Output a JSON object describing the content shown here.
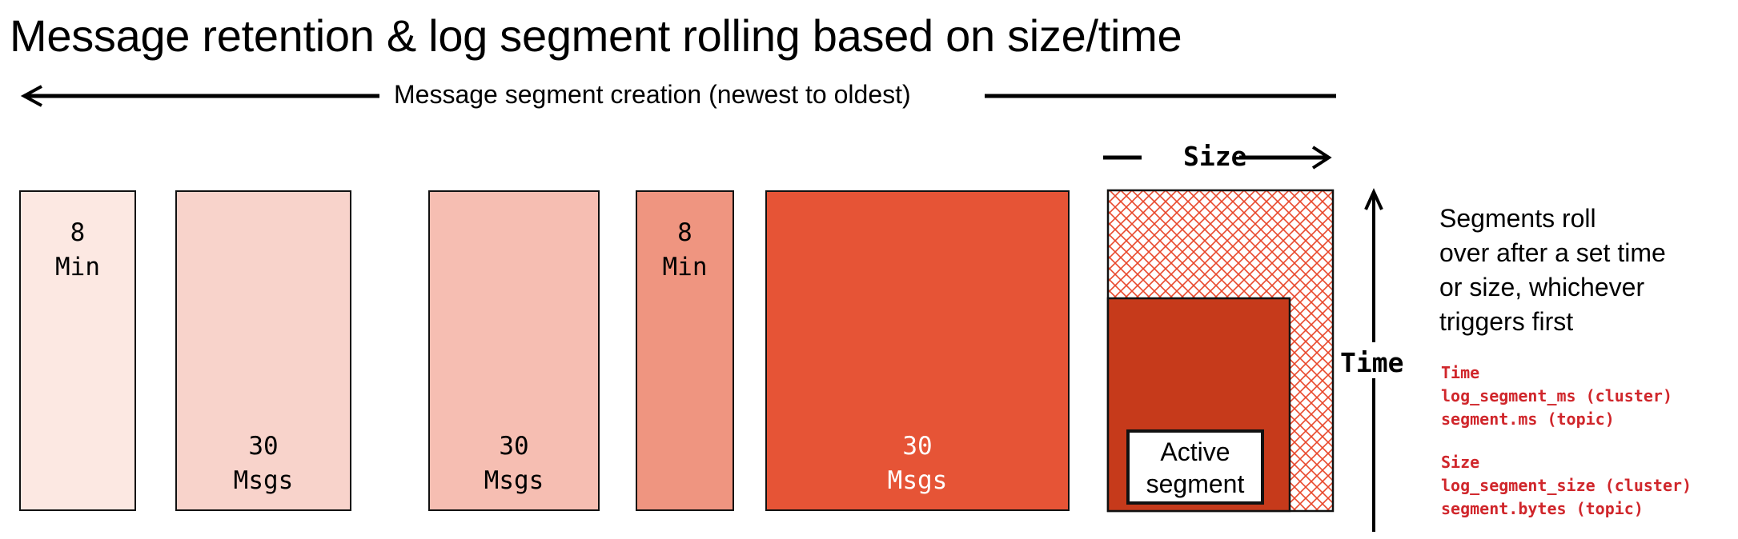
{
  "title": "Message retention & log segment rolling based on size/time",
  "timeline_label": "Message segment creation (newest to oldest)",
  "segments": [
    {
      "top": "8",
      "bottom_label": "Min",
      "position": "top",
      "color": "#fce8e2"
    },
    {
      "top": "30",
      "bottom_label": "Msgs",
      "position": "bottom",
      "color": "#f8d3cb"
    },
    {
      "top": "30",
      "bottom_label": "Msgs",
      "position": "bottom",
      "color": "#f6beb2"
    },
    {
      "top": "8",
      "bottom_label": "Min",
      "position": "top",
      "color": "#ef9580"
    },
    {
      "top": "30",
      "bottom_label": "Msgs",
      "position": "bottom",
      "color": "#e65436"
    }
  ],
  "active": {
    "line1": "Active",
    "line2": "segment",
    "color": "#c63a1b",
    "hatch_color": "#e8472b"
  },
  "size_label": "Size",
  "time_label": "Time",
  "note": {
    "lines": [
      "Segments roll",
      "over after a set time",
      "or size, whichever",
      "triggers first"
    ]
  },
  "time_config": {
    "heading": "Time",
    "cluster": "log_segment_ms (cluster)",
    "topic": "segment.ms (topic)"
  },
  "size_config": {
    "heading": "Size",
    "cluster": "log_segment_size (cluster)",
    "topic": "segment.bytes (topic)"
  },
  "accent_color": "#d0262b"
}
